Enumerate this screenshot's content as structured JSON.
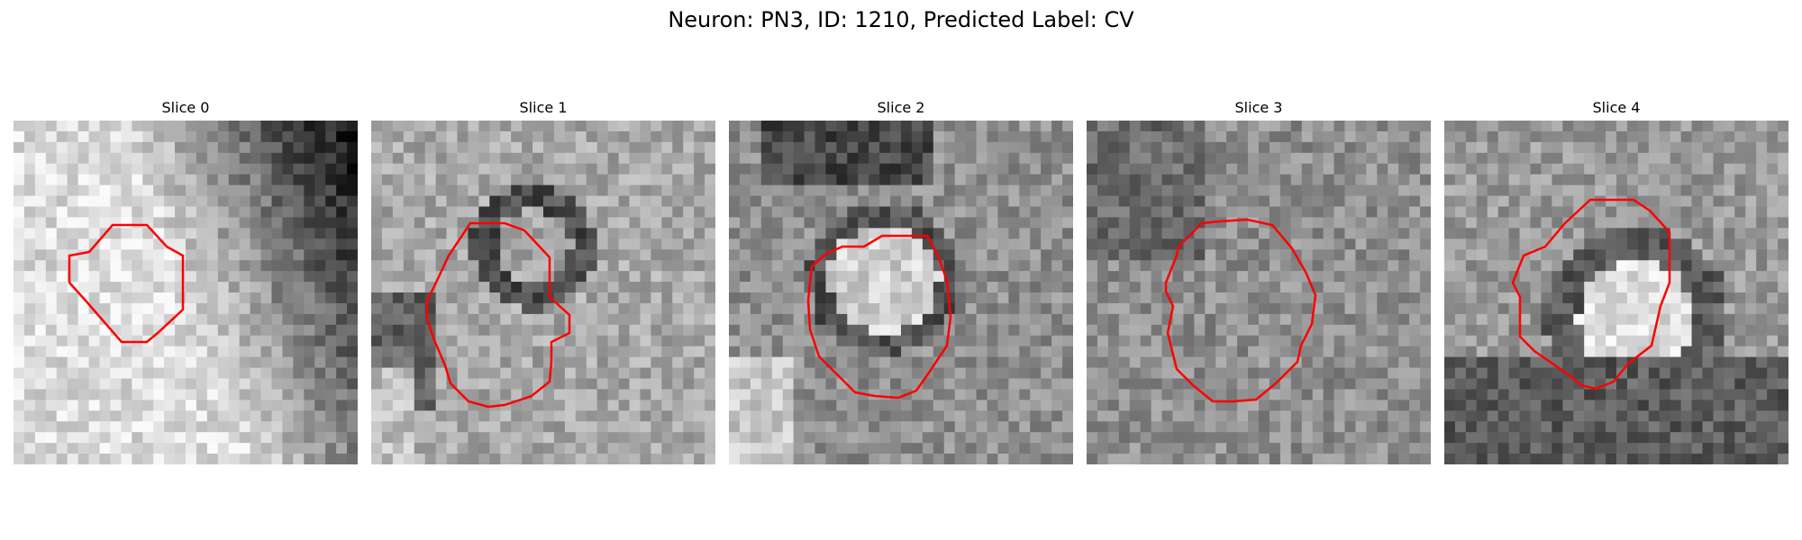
{
  "figure": {
    "title": "Neuron: PN3, ID: 1210, Predicted Label: CV",
    "contour_color": "#ff0000"
  },
  "slices": [
    {
      "title": "Slice 0",
      "contour": "slice-0-outline"
    },
    {
      "title": "Slice 1",
      "contour": "slice-1-outline"
    },
    {
      "title": "Slice 2",
      "contour": "slice-2-outline"
    },
    {
      "title": "Slice 3",
      "contour": "slice-3-outline"
    },
    {
      "title": "Slice 4",
      "contour": "slice-4-outline"
    }
  ]
}
